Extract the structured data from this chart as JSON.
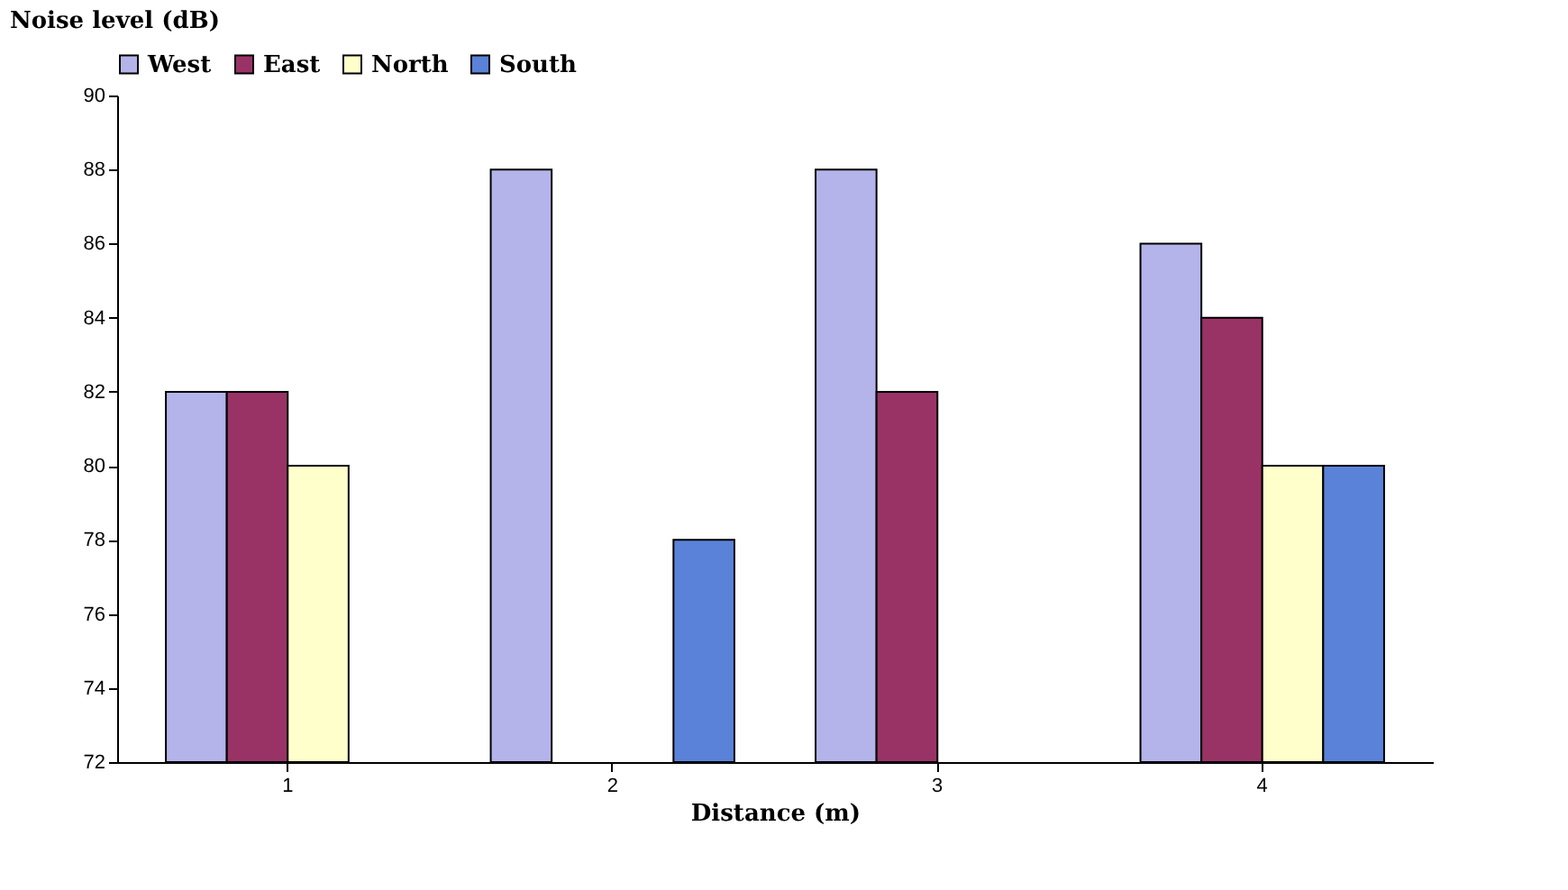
{
  "chart_data": {
    "type": "bar",
    "xlabel": "Distance (m)",
    "ylabel": "Noise level (dB)",
    "categories": [
      "1",
      "2",
      "3",
      "4"
    ],
    "series": [
      {
        "name": "West",
        "color": "#b4b4ea",
        "values": [
          82,
          88,
          88,
          86
        ]
      },
      {
        "name": "East",
        "color": "#993366",
        "values": [
          82,
          null,
          82,
          84
        ]
      },
      {
        "name": "North",
        "color": "#ffffcc",
        "values": [
          80,
          null,
          null,
          80
        ]
      },
      {
        "name": "South",
        "color": "#5a82d8",
        "values": [
          null,
          78,
          null,
          80
        ]
      }
    ],
    "ylim": [
      72,
      90
    ],
    "yticks": [
      72,
      74,
      76,
      78,
      80,
      82,
      84,
      86,
      88,
      90
    ],
    "grid": false,
    "legend": "top"
  }
}
